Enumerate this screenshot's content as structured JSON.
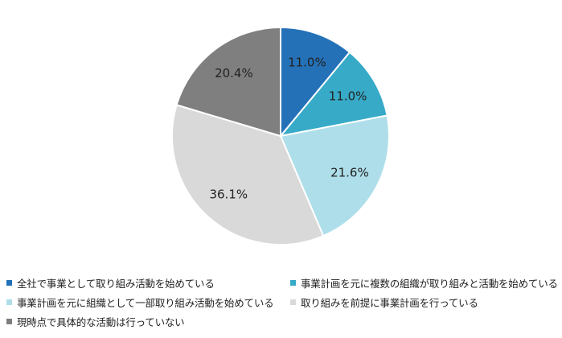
{
  "chart_data": {
    "type": "pie",
    "title": "",
    "start_angle_deg": 0,
    "direction": "clockwise",
    "legend_position": "bottom",
    "slices": [
      {
        "label": "全社で事業として取り組み活動を始めている",
        "value": 11.0,
        "value_label": "11.0%",
        "color": "#2471b8"
      },
      {
        "label": "事業計画を元に複数の組織が取り組みと活動を始めている",
        "value": 11.0,
        "value_label": "11.0%",
        "color": "#37aac8"
      },
      {
        "label": "事業計画を元に組織として一部取り組み活動を始めている",
        "value": 21.6,
        "value_label": "21.6%",
        "color": "#aedeea"
      },
      {
        "label": "取り組みを前提に事業計画を行っている",
        "value": 36.1,
        "value_label": "36.1%",
        "color": "#d9d9d9"
      },
      {
        "label": "現時点で具体的な活動は行っていない",
        "value": 20.4,
        "value_label": "20.4%",
        "color": "#7f7f7f"
      }
    ]
  }
}
